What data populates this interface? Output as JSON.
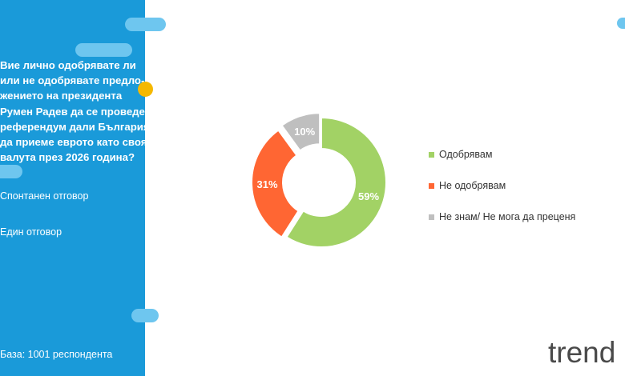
{
  "sidebar": {
    "question_lines": [
      "Вие лично одобрявате ли",
      "или не одобрявате предло-",
      "жението на президента",
      "Румен Радев да се проведе",
      "референдум дали България",
      "да приеме еврото като своя",
      "валута през 2026 година?"
    ],
    "note_1": "Спонтанен отговор",
    "note_2": "Един отговор",
    "base": "База:  1001 респондента"
  },
  "logo": "trend",
  "colors": {
    "sidebar": "#1a9ad9",
    "accent_pill": "#6ec6ef",
    "yellow": "#f5b800"
  },
  "chart_data": {
    "type": "pie",
    "donut": true,
    "categories": [
      "Одобрявам",
      "Не одобрявам",
      "Не знам/ Не мога да преценя"
    ],
    "values": [
      59,
      31,
      10
    ],
    "labels": [
      "59%",
      "31%",
      "10%"
    ],
    "colors": [
      "#a2d265",
      "#ff6633",
      "#bfbfbf"
    ],
    "legend_position": "right"
  }
}
